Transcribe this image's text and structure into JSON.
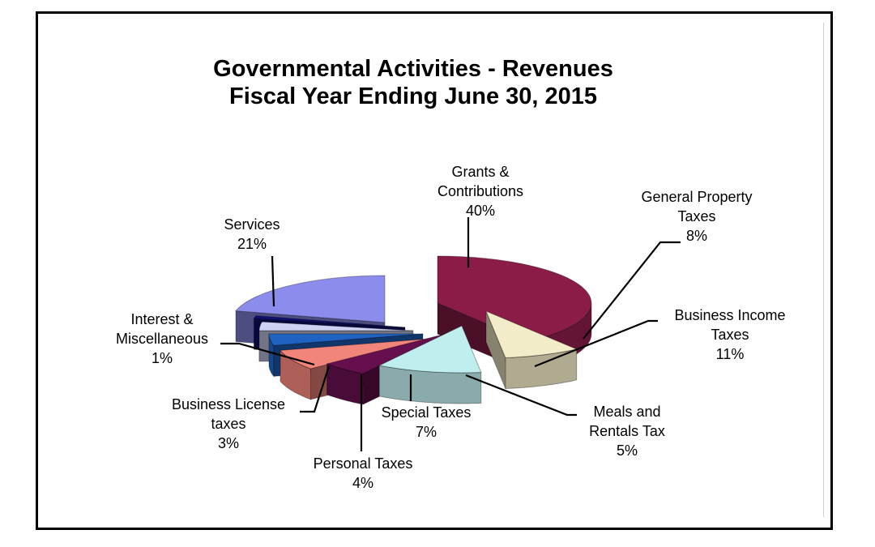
{
  "chart_data": {
    "type": "pie",
    "title": "Governmental Activities - Revenues",
    "subtitle": "Fiscal Year Ending June 30, 2015",
    "slices": [
      {
        "id": "grants",
        "label_lines": [
          "Grants &",
          "Contributions"
        ],
        "value_label": "40%",
        "value": 40,
        "color": "#8b1c48"
      },
      {
        "id": "property",
        "label_lines": [
          "General Property",
          "Taxes"
        ],
        "value_label": "8%",
        "value": 8,
        "color": "#f3ecc8"
      },
      {
        "id": "income",
        "label_lines": [
          "Business Income",
          "Taxes"
        ],
        "value_label": "11%",
        "value": 11,
        "color": "#bfeeee"
      },
      {
        "id": "meals",
        "label_lines": [
          "Meals and",
          "Rentals Tax"
        ],
        "value_label": "5%",
        "value": 5,
        "color": "#650f4e"
      },
      {
        "id": "special",
        "label_lines": [
          "Special Taxes"
        ],
        "value_label": "7%",
        "value": 7,
        "color": "#f2857a"
      },
      {
        "id": "personal",
        "label_lines": [
          "Personal Taxes"
        ],
        "value_label": "4%",
        "value": 4,
        "color": "#1f62c2"
      },
      {
        "id": "license",
        "label_lines": [
          "Business License",
          "taxes"
        ],
        "value_label": "3%",
        "value": 3,
        "color": "#cfd2f2"
      },
      {
        "id": "interest",
        "label_lines": [
          "Interest &",
          "Miscellaneous"
        ],
        "value_label": "1%",
        "value": 1,
        "color": "#101070"
      },
      {
        "id": "services",
        "label_lines": [
          "Services"
        ],
        "value_label": "21%",
        "value": 21,
        "color": "#8c8cec"
      }
    ]
  }
}
